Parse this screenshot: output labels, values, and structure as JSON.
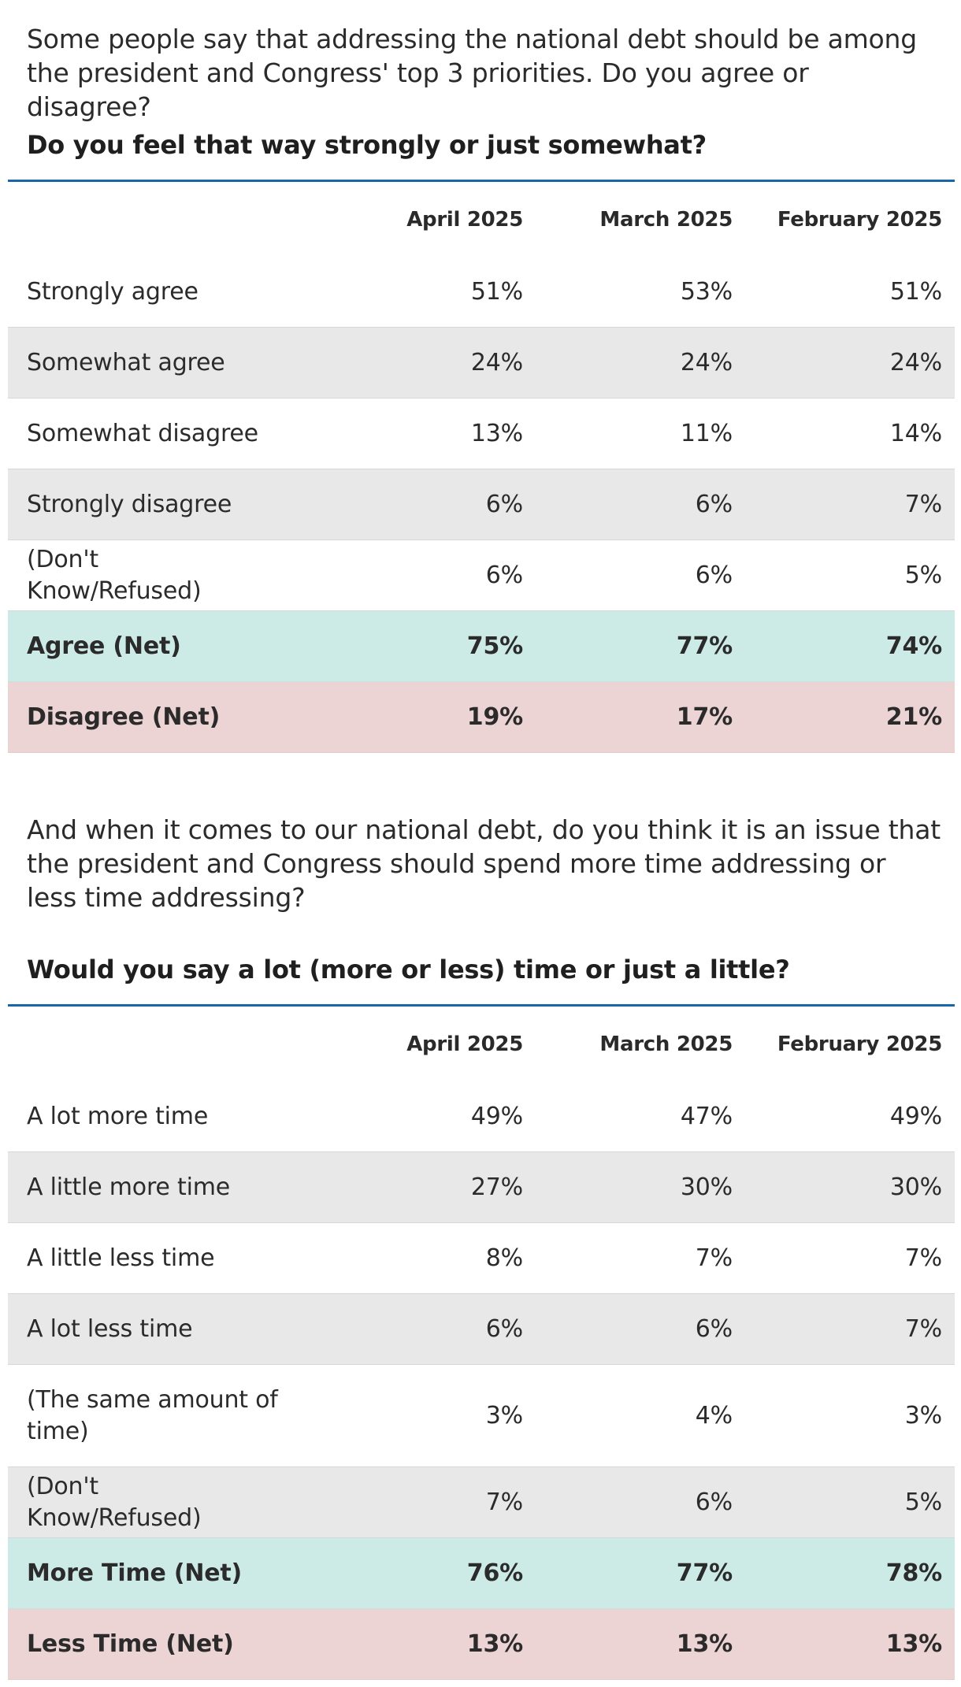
{
  "section1": {
    "question": "Some people say that addressing the national debt should be among the president and Congress' top 3 priorities. Do you agree or disagree?",
    "followup": "Do you feel that way strongly or just somewhat?",
    "columns": [
      "April 2025",
      "March 2025",
      "February 2025"
    ],
    "rows": [
      {
        "label": "Strongly agree",
        "values": [
          "51%",
          "53%",
          "51%"
        ]
      },
      {
        "label": "Somewhat agree",
        "values": [
          "24%",
          "24%",
          "24%"
        ]
      },
      {
        "label": "Somewhat disagree",
        "values": [
          "13%",
          "11%",
          "14%"
        ]
      },
      {
        "label": "Strongly disagree",
        "values": [
          "6%",
          "6%",
          "7%"
        ]
      },
      {
        "label": "(Don't Know/Refused)",
        "values": [
          "6%",
          "6%",
          "5%"
        ]
      },
      {
        "label": "Agree (Net)",
        "values": [
          "75%",
          "77%",
          "74%"
        ]
      },
      {
        "label": "Disagree (Net)",
        "values": [
          "19%",
          "17%",
          "21%"
        ]
      }
    ]
  },
  "section2": {
    "question": "And when it comes to our national debt, do you think it is an issue that the president and Congress should spend more time addressing or less time addressing?",
    "followup": "Would you say a lot (more or less) time or just a little?",
    "columns": [
      "April 2025",
      "March 2025",
      "February 2025"
    ],
    "rows": [
      {
        "label": "A lot more time",
        "values": [
          "49%",
          "47%",
          "49%"
        ]
      },
      {
        "label": "A little more time",
        "values": [
          "27%",
          "30%",
          "30%"
        ]
      },
      {
        "label": "A little less time",
        "values": [
          "8%",
          "7%",
          "7%"
        ]
      },
      {
        "label": "A lot less time",
        "values": [
          "6%",
          "6%",
          "7%"
        ]
      },
      {
        "label": "(The same amount of time)",
        "values": [
          "3%",
          "4%",
          "3%"
        ]
      },
      {
        "label": "(Don't Know/Refused)",
        "values": [
          "7%",
          "6%",
          "5%"
        ]
      },
      {
        "label": "More Time (Net)",
        "values": [
          "76%",
          "77%",
          "78%"
        ]
      },
      {
        "label": "Less Time (Net)",
        "values": [
          "13%",
          "13%",
          "13%"
        ]
      }
    ]
  },
  "colors": {
    "rule": "#1a67a8",
    "alt_row": "#e8e8e8",
    "net_positive": "#cdebe6",
    "net_negative": "#ecd4d4"
  }
}
